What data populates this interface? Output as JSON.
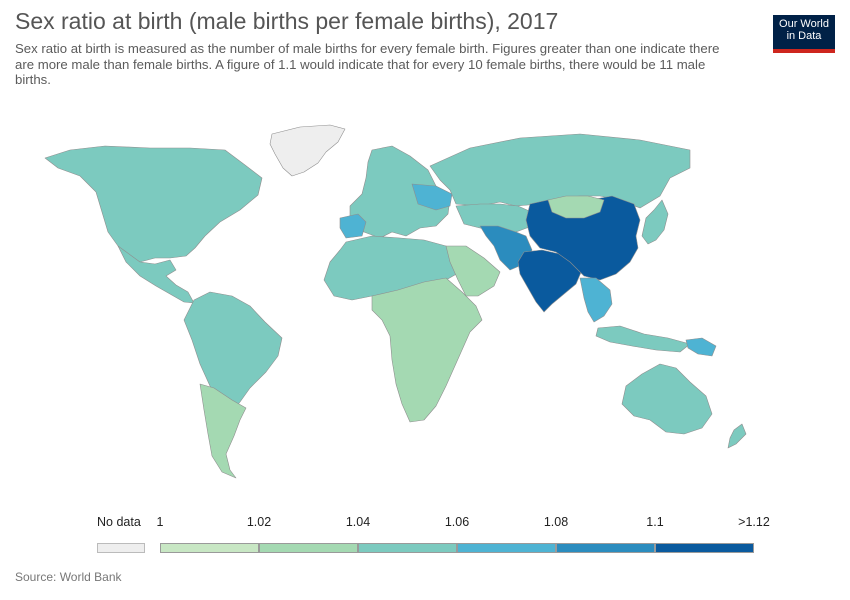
{
  "header": {
    "title": "Sex ratio at birth (male births per female births), 2017",
    "subtitle": "Sex ratio at birth is measured as the number of male births for every female birth. Figures greater than one indicate there are more male than female births. A figure of 1.1 would indicate that for every 10 female births, there would be 11 male births.",
    "logo_line1": "Our World",
    "logo_line2": "in Data"
  },
  "legend": {
    "no_data_label": "No data",
    "no_data_color": "#eeeeee",
    "ticks": [
      "1",
      "1.02",
      "1.04",
      "1.06",
      "1.08",
      "1.1",
      ">1.12"
    ],
    "bins": [
      {
        "range": "1–1.02",
        "color": "#c8e7c4"
      },
      {
        "range": "1.02–1.04",
        "color": "#a4d9b2"
      },
      {
        "range": "1.04–1.06",
        "color": "#7ccabf"
      },
      {
        "range": "1.06–1.08",
        "color": "#4eb3d3"
      },
      {
        "range": "1.08–1.1",
        "color": "#2b8cbe"
      },
      {
        "range": ">1.1",
        "color": "#0a5a9e"
      }
    ]
  },
  "regions": [
    {
      "name": "Greenland",
      "color": "#eeeeee"
    },
    {
      "name": "North America",
      "color": "#7ccabf"
    },
    {
      "name": "Central America & Caribbean",
      "color": "#7ccabf"
    },
    {
      "name": "South America",
      "color": "#7ccabf"
    },
    {
      "name": "Southern Cone",
      "color": "#a4d9b2"
    },
    {
      "name": "Europe",
      "color": "#7ccabf"
    },
    {
      "name": "Iberia",
      "color": "#4eb3d3"
    },
    {
      "name": "Caucasus & Ukraine",
      "color": "#4eb3d3"
    },
    {
      "name": "Russia",
      "color": "#7ccabf"
    },
    {
      "name": "North & West Africa",
      "color": "#7ccabf"
    },
    {
      "name": "Sub-Saharan Africa",
      "color": "#a4d9b2"
    },
    {
      "name": "Arabian Peninsula",
      "color": "#a4d9b2"
    },
    {
      "name": "Central Asia",
      "color": "#7ccabf"
    },
    {
      "name": "Afghanistan & Pakistan",
      "color": "#2b8cbe"
    },
    {
      "name": "India",
      "color": "#0a5a9e"
    },
    {
      "name": "China",
      "color": "#0a5a9e"
    },
    {
      "name": "Mongolia",
      "color": "#a4d9b2"
    },
    {
      "name": "Southeast Asia",
      "color": "#4eb3d3"
    },
    {
      "name": "Japan & Korea",
      "color": "#7ccabf"
    },
    {
      "name": "Indonesia",
      "color": "#7ccabf"
    },
    {
      "name": "Papua New Guinea",
      "color": "#4eb3d3"
    },
    {
      "name": "Australia",
      "color": "#7ccabf"
    },
    {
      "name": "New Zealand",
      "color": "#7ccabf"
    }
  ],
  "footer": {
    "source": "Source: World Bank"
  }
}
